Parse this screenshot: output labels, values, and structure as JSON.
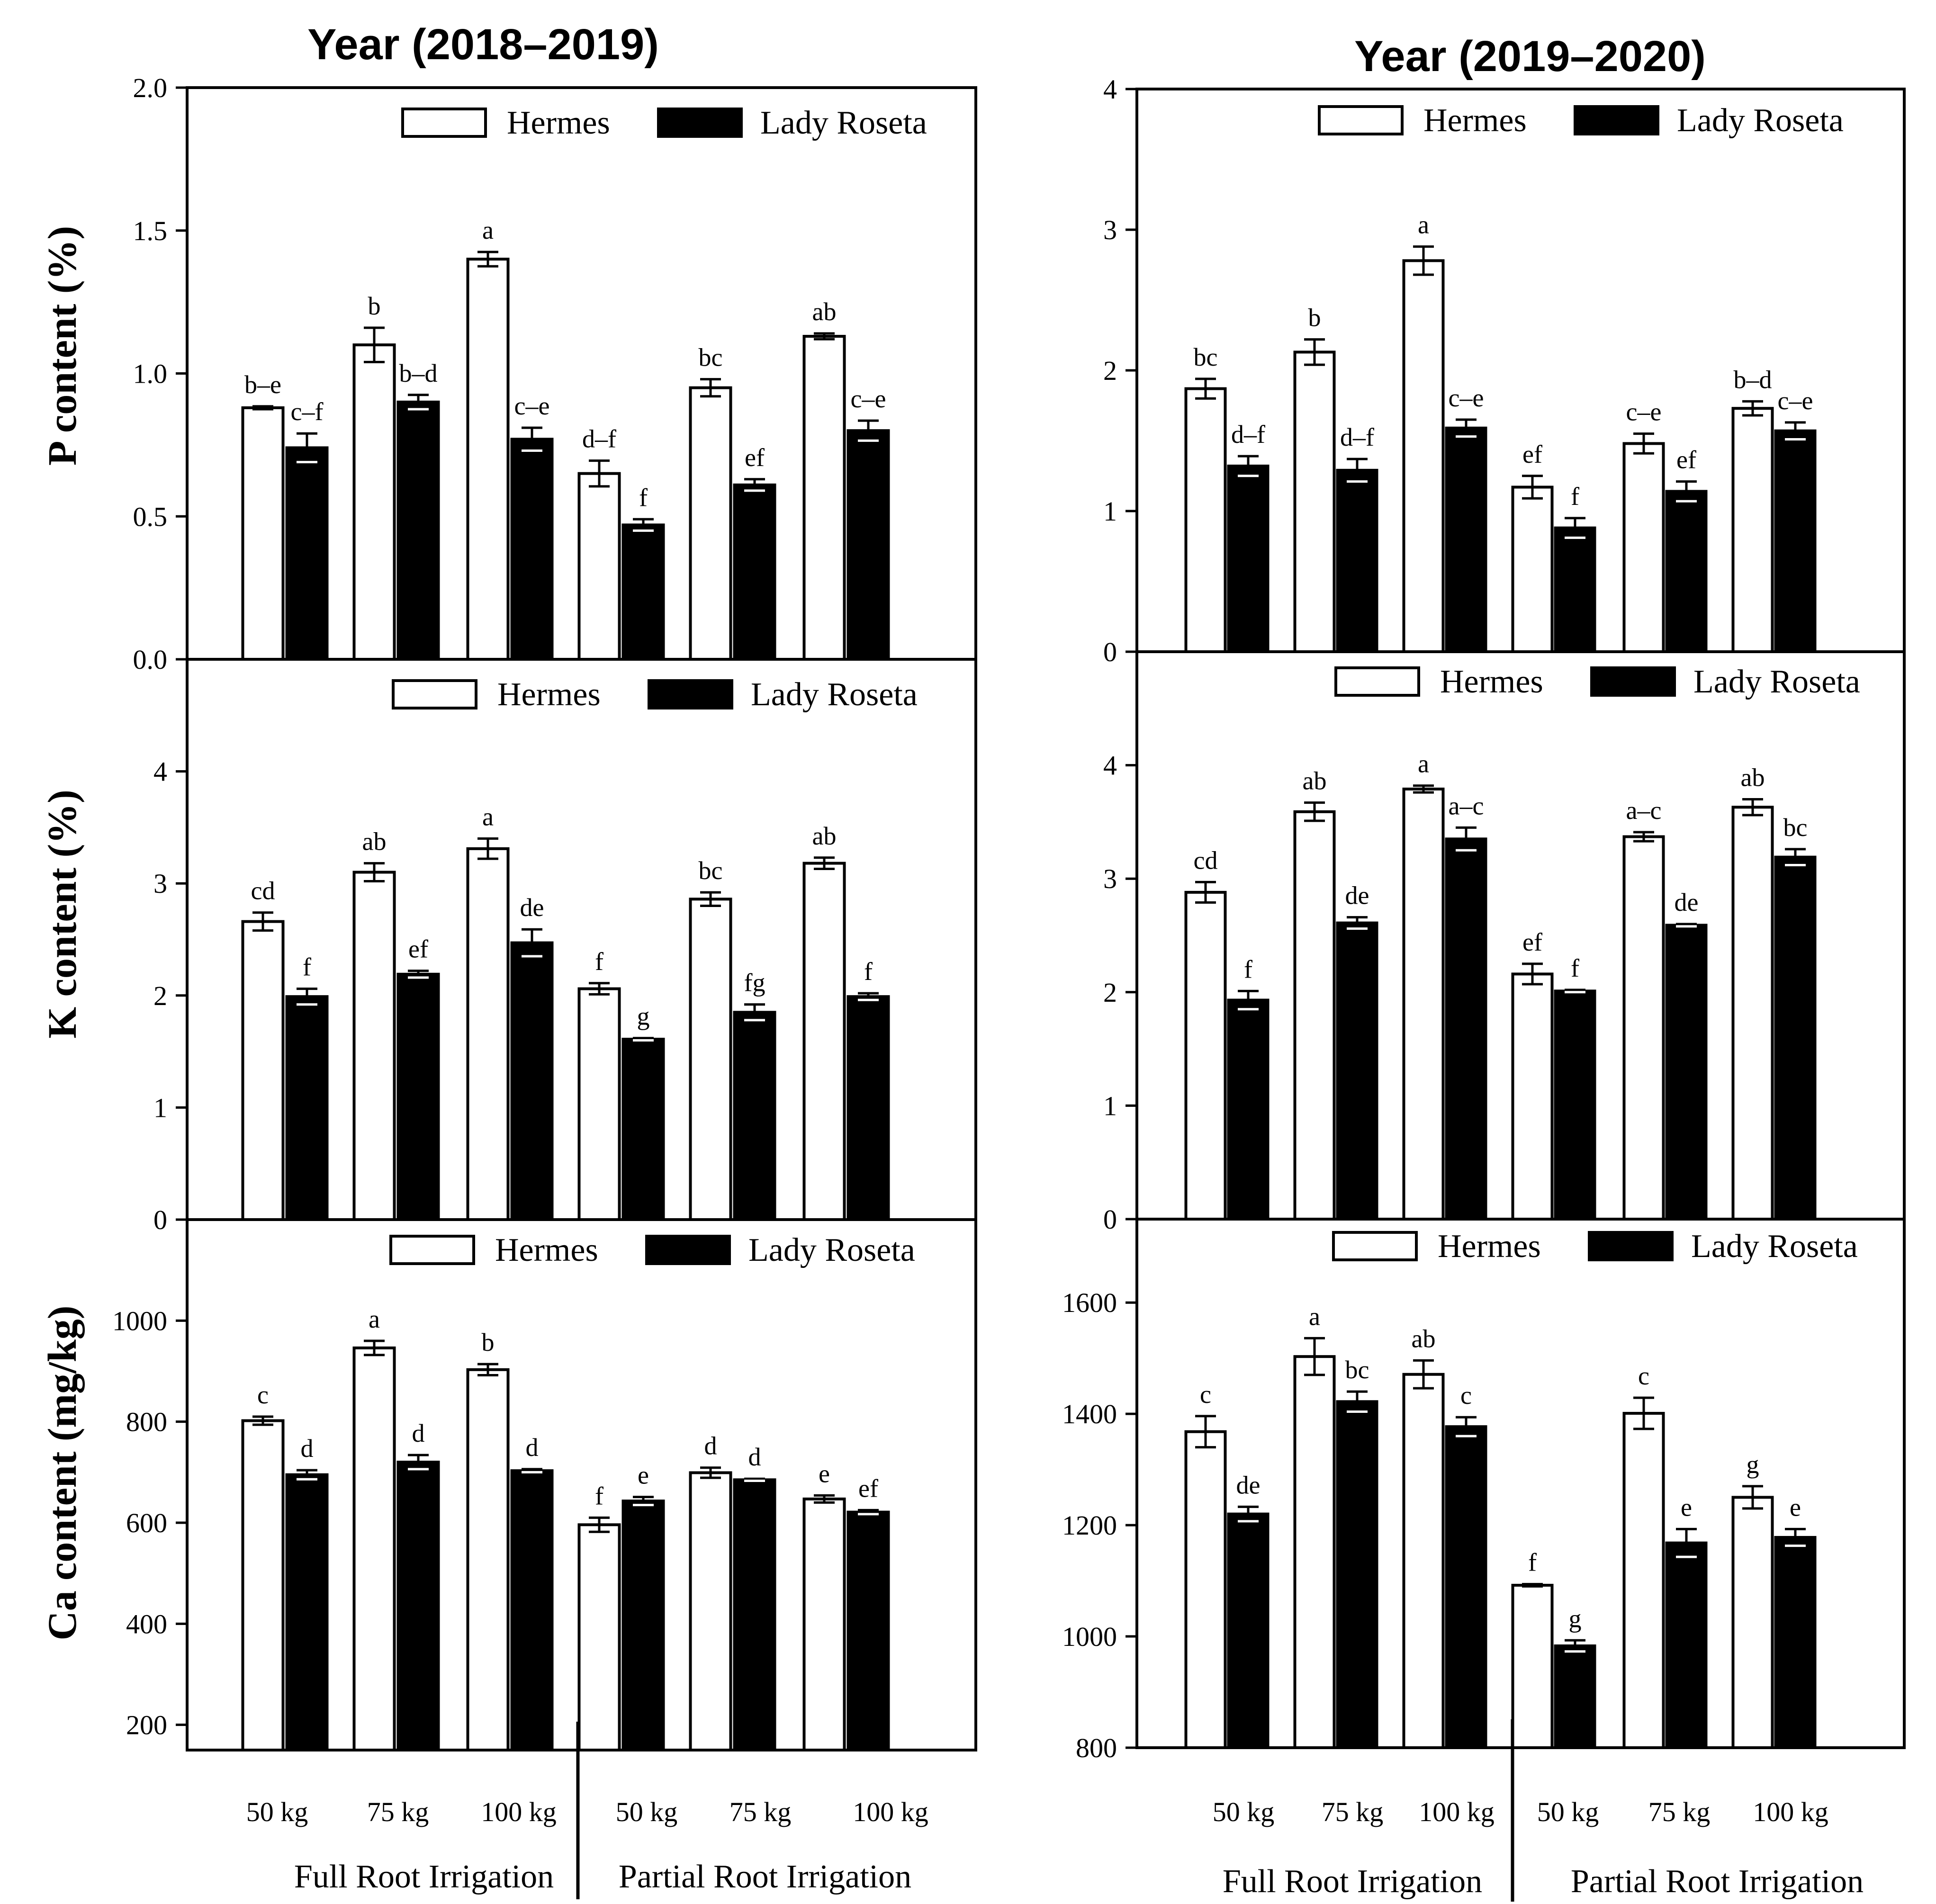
{
  "columns": [
    {
      "title": "Year (2018–2019)"
    },
    {
      "title": "Year (2019–2020)"
    }
  ],
  "ylabels": [
    "P content (%)",
    "K content (%)",
    "Ca content (mg/kg)"
  ],
  "legend": [
    "Hermes",
    "Lady Roseta"
  ],
  "x_categories": [
    "50 kg",
    "75 kg",
    "100 kg",
    "50 kg",
    "75 kg",
    "100 kg"
  ],
  "groups": [
    "Full Root Irrigation",
    "Partial Root Irrigation"
  ],
  "colors": {
    "Hermes": "#ffffff",
    "Lady Roseta": "#000000"
  },
  "chart_data": [
    {
      "type": "bar",
      "column": 0,
      "row": 0,
      "ylabel": "P content (%)",
      "ylim": [
        0,
        2
      ],
      "yticks": [
        0,
        0.5,
        1,
        1.5,
        2
      ],
      "ytick_labels": [
        "0.0",
        "0.5",
        "1.0",
        "1.5",
        "2.0"
      ],
      "categories": [
        "50 kg",
        "75 kg",
        "100 kg",
        "50 kg",
        "75 kg",
        "100 kg"
      ],
      "series": [
        {
          "name": "Hermes",
          "values": [
            0.88,
            1.1,
            1.4,
            0.65,
            0.95,
            1.13
          ],
          "errors": [
            0.005,
            0.06,
            0.025,
            0.045,
            0.03,
            0.01
          ],
          "labels": [
            "b–e",
            "b",
            "a",
            "d–f",
            "bc",
            "ab"
          ]
        },
        {
          "name": "Lady Roseta",
          "values": [
            0.74,
            0.9,
            0.77,
            0.47,
            0.61,
            0.8
          ],
          "errors": [
            0.05,
            0.025,
            0.04,
            0.02,
            0.02,
            0.035
          ],
          "labels": [
            "c–f",
            "b–d",
            "c–e",
            "f",
            "ef",
            "c–e"
          ]
        }
      ]
    },
    {
      "type": "bar",
      "column": 0,
      "row": 1,
      "ylabel": "K content (%)",
      "ylim": [
        0,
        5
      ],
      "yticks": [
        0,
        1,
        2,
        3,
        4
      ],
      "ytick_labels": [
        "0",
        "1",
        "2",
        "3",
        "4"
      ],
      "categories": [
        "50 kg",
        "75 kg",
        "100 kg",
        "50 kg",
        "75 kg",
        "100 kg"
      ],
      "series": [
        {
          "name": "Hermes",
          "values": [
            2.66,
            3.1,
            3.31,
            2.06,
            2.86,
            3.18
          ],
          "errors": [
            0.08,
            0.08,
            0.09,
            0.05,
            0.06,
            0.05
          ],
          "labels": [
            "cd",
            "ab",
            "a",
            "f",
            "bc",
            "ab"
          ]
        },
        {
          "name": "Lady Roseta",
          "values": [
            1.99,
            2.19,
            2.47,
            1.61,
            1.85,
            1.99
          ],
          "errors": [
            0.07,
            0.03,
            0.12,
            0.01,
            0.07,
            0.03
          ],
          "labels": [
            "f",
            "ef",
            "de",
            "g",
            "fg",
            "f"
          ]
        }
      ]
    },
    {
      "type": "bar",
      "column": 0,
      "row": 2,
      "ylabel": "Ca content (mg/kg)",
      "ylim": [
        150,
        1200
      ],
      "yticks": [
        200,
        400,
        600,
        800,
        1000
      ],
      "ytick_labels": [
        "200",
        "400",
        "600",
        "800",
        "1000"
      ],
      "categories": [
        "50 kg",
        "75 kg",
        "100 kg",
        "50 kg",
        "75 kg",
        "100 kg"
      ],
      "series": [
        {
          "name": "Hermes",
          "values": [
            802,
            946,
            903,
            596,
            699,
            647
          ],
          "errors": [
            8,
            14,
            11,
            14,
            10,
            7
          ],
          "labels": [
            "c",
            "a",
            "b",
            "f",
            "d",
            "e"
          ]
        },
        {
          "name": "Lady Roseta",
          "values": [
            695,
            720,
            703,
            643,
            685,
            621
          ],
          "errors": [
            9,
            14,
            3,
            8,
            2,
            4
          ],
          "labels": [
            "d",
            "d",
            "d",
            "e",
            "d",
            "ef"
          ]
        }
      ]
    },
    {
      "type": "bar",
      "column": 1,
      "row": 0,
      "ylabel": "",
      "ylim": [
        0,
        4
      ],
      "yticks": [
        0,
        1,
        2,
        3,
        4
      ],
      "ytick_labels": [
        "0",
        "1",
        "2",
        "3",
        "4"
      ],
      "categories": [
        "50 kg",
        "75 kg",
        "100 kg",
        "50 kg",
        "75 kg",
        "100 kg"
      ],
      "series": [
        {
          "name": "Hermes",
          "values": [
            1.87,
            2.13,
            2.78,
            1.17,
            1.48,
            1.73
          ],
          "errors": [
            0.07,
            0.09,
            0.1,
            0.08,
            0.07,
            0.05
          ],
          "labels": [
            "bc",
            "b",
            "a",
            "ef",
            "c–e",
            "b–d"
          ]
        },
        {
          "name": "Lady Roseta",
          "values": [
            1.32,
            1.29,
            1.59,
            0.88,
            1.14,
            1.57
          ],
          "errors": [
            0.07,
            0.08,
            0.06,
            0.07,
            0.07,
            0.06
          ],
          "labels": [
            "d–f",
            "d–f",
            "c–e",
            "f",
            "ef",
            "c–e"
          ]
        }
      ]
    },
    {
      "type": "bar",
      "column": 1,
      "row": 1,
      "ylabel": "",
      "ylim": [
        0,
        5
      ],
      "yticks": [
        0,
        1,
        2,
        3,
        4
      ],
      "ytick_labels": [
        "0",
        "1",
        "2",
        "3",
        "4"
      ],
      "categories": [
        "50 kg",
        "75 kg",
        "100 kg",
        "50 kg",
        "75 kg",
        "100 kg"
      ],
      "series": [
        {
          "name": "Hermes",
          "values": [
            2.88,
            3.59,
            3.79,
            2.16,
            3.37,
            3.63
          ],
          "errors": [
            0.09,
            0.08,
            0.03,
            0.09,
            0.04,
            0.07
          ],
          "labels": [
            "cd",
            "ab",
            "a",
            "ef",
            "a–c",
            "ab"
          ]
        },
        {
          "name": "Lady Roseta",
          "values": [
            1.93,
            2.61,
            3.35,
            2.01,
            2.59,
            3.19
          ],
          "errors": [
            0.08,
            0.05,
            0.1,
            0.01,
            0.01,
            0.07
          ],
          "labels": [
            "f",
            "de",
            "a–c",
            "f",
            "de",
            "bc"
          ]
        }
      ]
    },
    {
      "type": "bar",
      "column": 1,
      "row": 2,
      "ylabel": "",
      "ylim": [
        800,
        1750
      ],
      "yticks": [
        800,
        1000,
        1200,
        1400,
        1600
      ],
      "ytick_labels": [
        "800",
        "1000",
        "1200",
        "1400",
        "1600"
      ],
      "categories": [
        "50 kg",
        "75 kg",
        "100 kg",
        "50 kg",
        "75 kg",
        "100 kg"
      ],
      "series": [
        {
          "name": "Hermes",
          "values": [
            1368,
            1503,
            1471,
            1092,
            1401,
            1250
          ],
          "errors": [
            28,
            33,
            25,
            2,
            28,
            20
          ],
          "labels": [
            "c",
            "a",
            "ab",
            "f",
            "c",
            "g"
          ]
        },
        {
          "name": "Lady Roseta",
          "values": [
            1220,
            1422,
            1377,
            983,
            1168,
            1178
          ],
          "errors": [
            13,
            18,
            17,
            10,
            25,
            15
          ],
          "labels": [
            "de",
            "bc",
            "c",
            "g",
            "e",
            "e"
          ]
        }
      ]
    }
  ]
}
